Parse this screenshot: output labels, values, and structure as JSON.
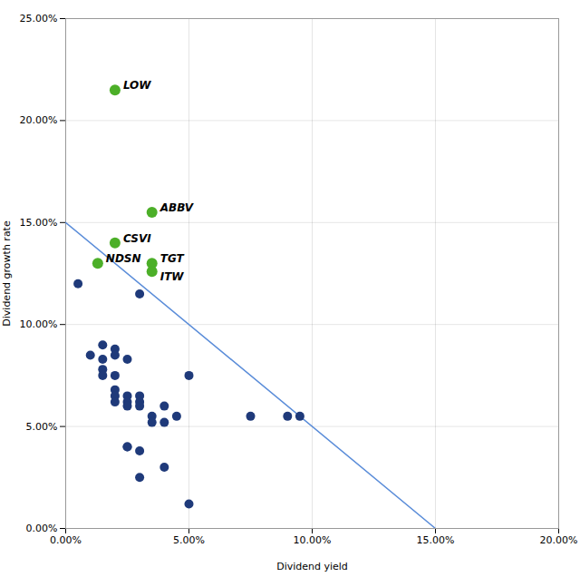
{
  "chart_data": {
    "type": "scatter",
    "xlabel": "Dividend yield",
    "ylabel": "Dividend growth rate",
    "xlim": [
      0.0,
      0.2
    ],
    "ylim": [
      0.0,
      0.25
    ],
    "xticks": [
      {
        "value": 0.0,
        "label": "0.00%"
      },
      {
        "value": 0.05,
        "label": "5.00%"
      },
      {
        "value": 0.1,
        "label": "10.00%"
      },
      {
        "value": 0.15,
        "label": "15.00%"
      },
      {
        "value": 0.2,
        "label": "20.00%"
      }
    ],
    "yticks": [
      {
        "value": 0.0,
        "label": "0.00%"
      },
      {
        "value": 0.05,
        "label": "5.00%"
      },
      {
        "value": 0.1,
        "label": "10.00%"
      },
      {
        "value": 0.15,
        "label": "15.00%"
      },
      {
        "value": 0.2,
        "label": "20.00%"
      },
      {
        "value": 0.25,
        "label": "25.00%"
      }
    ],
    "grid": true,
    "series": [
      {
        "type": "scatter",
        "color": "#1f3a7a",
        "x": [
          0.005,
          0.01,
          0.015,
          0.015,
          0.015,
          0.015,
          0.02,
          0.02,
          0.02,
          0.02,
          0.02,
          0.02,
          0.025,
          0.025,
          0.025,
          0.025,
          0.025,
          0.025,
          0.03,
          0.03,
          0.03,
          0.03,
          0.03,
          0.03,
          0.035,
          0.035,
          0.04,
          0.04,
          0.04,
          0.045,
          0.05,
          0.05,
          0.075,
          0.09,
          0.095
        ],
        "y": [
          0.12,
          0.085,
          0.09,
          0.083,
          0.078,
          0.075,
          0.088,
          0.085,
          0.075,
          0.068,
          0.065,
          0.062,
          0.083,
          0.065,
          0.062,
          0.06,
          0.04,
          0.04,
          0.115,
          0.065,
          0.062,
          0.06,
          0.038,
          0.025,
          0.055,
          0.052,
          0.06,
          0.052,
          0.03,
          0.055,
          0.075,
          0.012,
          0.055,
          0.055,
          0.055
        ]
      },
      {
        "type": "scatter",
        "color": "#4caf28",
        "x": [
          0.02,
          0.035,
          0.02,
          0.013,
          0.035,
          0.035
        ],
        "y": [
          0.215,
          0.155,
          0.14,
          0.13,
          0.13,
          0.126
        ],
        "labels": [
          "LOW",
          "ABBV",
          "CSVI",
          "NDSN",
          "TGT",
          "ITW"
        ]
      },
      {
        "type": "line",
        "color": "#5b8dd9",
        "x": [
          0.0,
          0.15
        ],
        "y": [
          0.15,
          0.0
        ]
      }
    ]
  }
}
